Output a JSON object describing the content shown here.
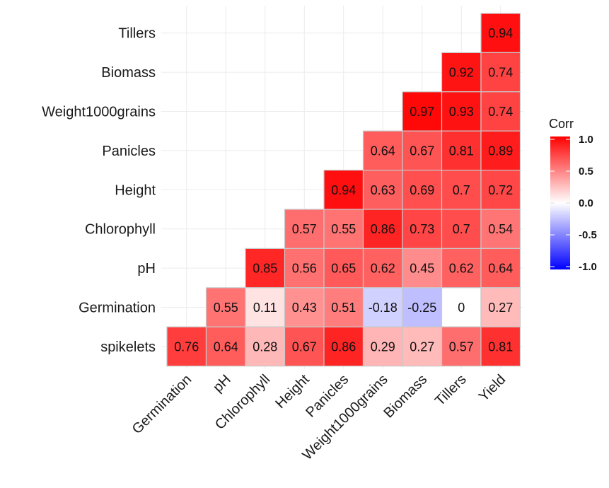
{
  "chart_data": {
    "type": "heatmap",
    "title": "",
    "xlabel": "",
    "ylabel": "",
    "grid": true,
    "legend_position": "right",
    "x_categories": [
      "Germination",
      "pH",
      "Chlorophyll",
      "Height",
      "Panicles",
      "Weight1000grains",
      "Biomass",
      "Tillers",
      "Yield"
    ],
    "y_categories": [
      "spikelets",
      "Germination",
      "pH",
      "Chlorophyll",
      "Height",
      "Panicles",
      "Weight1000grains",
      "Biomass",
      "Tillers"
    ],
    "cells": [
      {
        "row": "Tillers",
        "col": "Yield",
        "value": 0.94,
        "label": "0.94"
      },
      {
        "row": "Biomass",
        "col": "Tillers",
        "value": 0.92,
        "label": "0.92"
      },
      {
        "row": "Biomass",
        "col": "Yield",
        "value": 0.74,
        "label": "0.74"
      },
      {
        "row": "Weight1000grains",
        "col": "Biomass",
        "value": 0.97,
        "label": "0.97"
      },
      {
        "row": "Weight1000grains",
        "col": "Tillers",
        "value": 0.93,
        "label": "0.93"
      },
      {
        "row": "Weight1000grains",
        "col": "Yield",
        "value": 0.74,
        "label": "0.74"
      },
      {
        "row": "Panicles",
        "col": "Weight1000grains",
        "value": 0.64,
        "label": "0.64"
      },
      {
        "row": "Panicles",
        "col": "Biomass",
        "value": 0.67,
        "label": "0.67"
      },
      {
        "row": "Panicles",
        "col": "Tillers",
        "value": 0.81,
        "label": "0.81"
      },
      {
        "row": "Panicles",
        "col": "Yield",
        "value": 0.89,
        "label": "0.89"
      },
      {
        "row": "Height",
        "col": "Panicles",
        "value": 0.94,
        "label": "0.94"
      },
      {
        "row": "Height",
        "col": "Weight1000grains",
        "value": 0.63,
        "label": "0.63"
      },
      {
        "row": "Height",
        "col": "Biomass",
        "value": 0.69,
        "label": "0.69"
      },
      {
        "row": "Height",
        "col": "Tillers",
        "value": 0.7,
        "label": "0.7"
      },
      {
        "row": "Height",
        "col": "Yield",
        "value": 0.72,
        "label": "0.72"
      },
      {
        "row": "Chlorophyll",
        "col": "Height",
        "value": 0.57,
        "label": "0.57"
      },
      {
        "row": "Chlorophyll",
        "col": "Panicles",
        "value": 0.55,
        "label": "0.55"
      },
      {
        "row": "Chlorophyll",
        "col": "Weight1000grains",
        "value": 0.86,
        "label": "0.86"
      },
      {
        "row": "Chlorophyll",
        "col": "Biomass",
        "value": 0.73,
        "label": "0.73"
      },
      {
        "row": "Chlorophyll",
        "col": "Tillers",
        "value": 0.7,
        "label": "0.7"
      },
      {
        "row": "Chlorophyll",
        "col": "Yield",
        "value": 0.54,
        "label": "0.54"
      },
      {
        "row": "pH",
        "col": "Chlorophyll",
        "value": 0.85,
        "label": "0.85"
      },
      {
        "row": "pH",
        "col": "Height",
        "value": 0.56,
        "label": "0.56"
      },
      {
        "row": "pH",
        "col": "Panicles",
        "value": 0.65,
        "label": "0.65"
      },
      {
        "row": "pH",
        "col": "Weight1000grains",
        "value": 0.62,
        "label": "0.62"
      },
      {
        "row": "pH",
        "col": "Biomass",
        "value": 0.45,
        "label": "0.45"
      },
      {
        "row": "pH",
        "col": "Tillers",
        "value": 0.62,
        "label": "0.62"
      },
      {
        "row": "pH",
        "col": "Yield",
        "value": 0.64,
        "label": "0.64"
      },
      {
        "row": "Germination",
        "col": "pH",
        "value": 0.55,
        "label": "0.55"
      },
      {
        "row": "Germination",
        "col": "Chlorophyll",
        "value": 0.11,
        "label": "0.11"
      },
      {
        "row": "Germination",
        "col": "Height",
        "value": 0.43,
        "label": "0.43"
      },
      {
        "row": "Germination",
        "col": "Panicles",
        "value": 0.51,
        "label": "0.51"
      },
      {
        "row": "Germination",
        "col": "Weight1000grains",
        "value": -0.18,
        "label": "-0.18"
      },
      {
        "row": "Germination",
        "col": "Biomass",
        "value": -0.25,
        "label": "-0.25"
      },
      {
        "row": "Germination",
        "col": "Tillers",
        "value": 0,
        "label": "0"
      },
      {
        "row": "Germination",
        "col": "Yield",
        "value": 0.27,
        "label": "0.27"
      },
      {
        "row": "spikelets",
        "col": "Germination",
        "value": 0.76,
        "label": "0.76"
      },
      {
        "row": "spikelets",
        "col": "pH",
        "value": 0.64,
        "label": "0.64"
      },
      {
        "row": "spikelets",
        "col": "Chlorophyll",
        "value": 0.28,
        "label": "0.28"
      },
      {
        "row": "spikelets",
        "col": "Height",
        "value": 0.67,
        "label": "0.67"
      },
      {
        "row": "spikelets",
        "col": "Panicles",
        "value": 0.86,
        "label": "0.86"
      },
      {
        "row": "spikelets",
        "col": "Weight1000grains",
        "value": 0.29,
        "label": "0.29"
      },
      {
        "row": "spikelets",
        "col": "Biomass",
        "value": 0.27,
        "label": "0.27"
      },
      {
        "row": "spikelets",
        "col": "Tillers",
        "value": 0.57,
        "label": "0.57"
      },
      {
        "row": "spikelets",
        "col": "Yield",
        "value": 0.81,
        "label": "0.81"
      }
    ],
    "legend": {
      "title": "Corr",
      "ticks": [
        "1.0",
        "0.5",
        "0.0",
        "-0.5",
        "-1.0"
      ],
      "range": [
        -1,
        1
      ],
      "colors": {
        "low": "#0000ff",
        "mid": "#ffffff",
        "high": "#ff0000"
      }
    }
  }
}
